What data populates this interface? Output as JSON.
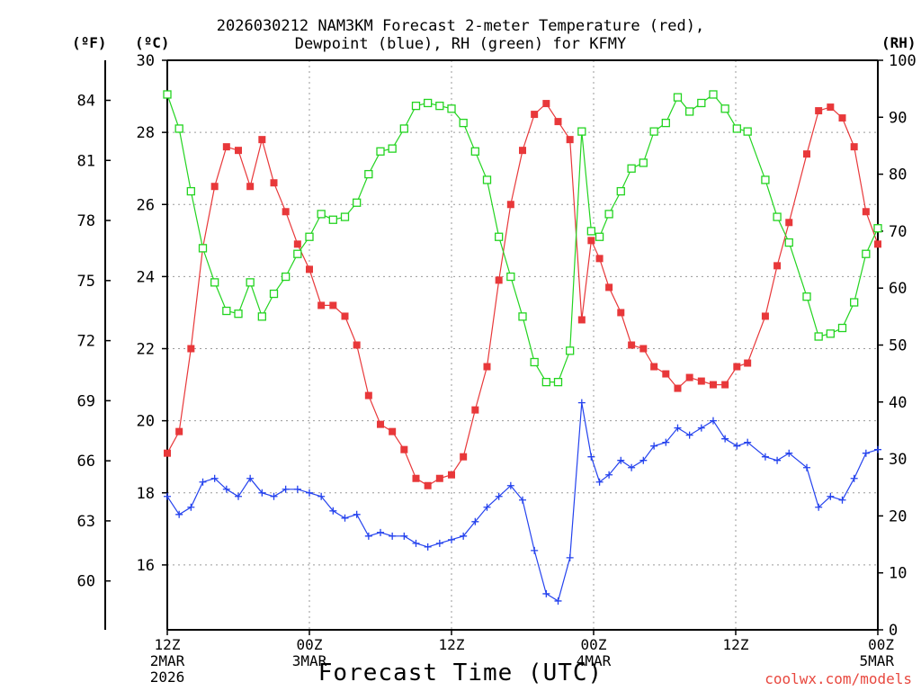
{
  "chart_data": {
    "type": "line",
    "title_line1": "2026030212 NAM3KM Forecast 2-meter Temperature (red),",
    "title_line2": "Dewpoint (blue), RH (green) for KFMY",
    "xlabel": "Forecast Time (UTC)",
    "credit": "coolwx.com/models",
    "units": {
      "f": "(ºF)",
      "c": "(ºC)",
      "rh": "(RH)"
    },
    "x_range_hours": [
      0,
      60
    ],
    "ylim_c": [
      14.2,
      30
    ],
    "ylim_rh": [
      0,
      100
    ],
    "c_ticks": [
      "16",
      "18",
      "20",
      "22",
      "24",
      "26",
      "28",
      "30"
    ],
    "f_ticks": [
      "60",
      "63",
      "66",
      "69",
      "72",
      "75",
      "78",
      "81",
      "84"
    ],
    "rh_ticks": [
      "0",
      "10",
      "20",
      "30",
      "40",
      "50",
      "60",
      "70",
      "80",
      "90",
      "100"
    ],
    "x_ticks": [
      {
        "hour": 0,
        "lines": [
          "12Z",
          "2MAR",
          "2026"
        ]
      },
      {
        "hour": 12,
        "lines": [
          "00Z",
          "3MAR"
        ]
      },
      {
        "hour": 24,
        "lines": [
          "12Z"
        ]
      },
      {
        "hour": 36,
        "lines": [
          "00Z",
          "4MAR"
        ]
      },
      {
        "hour": 48,
        "lines": [
          "12Z"
        ]
      },
      {
        "hour": 60,
        "lines": [
          "00Z",
          "5MAR"
        ]
      }
    ],
    "series": [
      {
        "name": "2-meter Temperature",
        "unit": "C",
        "color": "#e8383a",
        "marker": "filled-square",
        "values": [
          19.1,
          19.7,
          22.0,
          24.8,
          26.5,
          27.6,
          27.5,
          26.5,
          27.8,
          26.6,
          25.8,
          24.9,
          24.2,
          23.2,
          23.2,
          22.9,
          22.1,
          20.7,
          19.9,
          19.7,
          19.2,
          18.4,
          18.2,
          18.4,
          18.5,
          19.0,
          20.3,
          21.5,
          23.9,
          26.0,
          27.5,
          28.5,
          28.8,
          28.3,
          27.8,
          22.8,
          25.0,
          24.5,
          23.7,
          23.0,
          22.1,
          22.0,
          21.5,
          21.3,
          20.9,
          21.2,
          21.1,
          21.0,
          21.0,
          21.5,
          21.6,
          22.9,
          24.3,
          25.5,
          27.4,
          28.6,
          28.7,
          28.4,
          27.6,
          25.8,
          24.9
        ],
        "hour_positions": [
          0,
          1,
          2,
          3,
          4,
          5,
          6,
          7,
          8,
          9,
          10,
          11,
          12,
          13,
          14,
          15,
          16,
          17,
          18,
          19,
          20,
          21,
          22,
          23,
          24,
          25,
          26,
          27,
          28,
          29,
          30,
          31,
          32,
          33,
          34,
          35,
          35.8,
          36.5,
          37.3,
          38.3,
          39.2,
          40.2,
          41.1,
          42.1,
          43.1,
          44.1,
          45.1,
          46.1,
          47.1,
          48.1,
          49,
          50.5,
          51.5,
          52.5,
          54,
          55,
          56,
          57,
          58,
          59,
          60
        ]
      },
      {
        "name": "Dewpoint",
        "unit": "C",
        "color": "#2442ee",
        "marker": "plus",
        "values": [
          17.9,
          17.4,
          17.6,
          18.3,
          18.4,
          18.1,
          17.9,
          18.4,
          18.0,
          17.9,
          18.1,
          18.1,
          18.0,
          17.9,
          17.5,
          17.3,
          17.4,
          16.8,
          16.9,
          16.8,
          16.8,
          16.6,
          16.5,
          16.6,
          16.7,
          16.8,
          17.2,
          17.6,
          17.9,
          18.2,
          17.8,
          16.4,
          15.2,
          15.0,
          16.2,
          20.5,
          19.0,
          18.3,
          18.5,
          18.9,
          18.7,
          18.9,
          19.3,
          19.4,
          19.8,
          19.6,
          19.8,
          20.0,
          19.5,
          19.3,
          19.4,
          19.0,
          18.9,
          19.1,
          18.7,
          17.6,
          17.9,
          17.8,
          18.4,
          19.1,
          19.2
        ],
        "hour_positions": [
          0,
          1,
          2,
          3,
          4,
          5,
          6,
          7,
          8,
          9,
          10,
          11,
          12,
          13,
          14,
          15,
          16,
          17,
          18,
          19,
          20,
          21,
          22,
          23,
          24,
          25,
          26,
          27,
          28,
          29,
          30,
          31,
          32,
          33,
          34,
          35,
          35.8,
          36.5,
          37.3,
          38.3,
          39.2,
          40.2,
          41.1,
          42.1,
          43.1,
          44.1,
          45.1,
          46.1,
          47.1,
          48.1,
          49,
          50.5,
          51.5,
          52.5,
          54,
          55,
          56,
          57,
          58,
          59,
          60
        ]
      },
      {
        "name": "RH",
        "unit": "%",
        "color": "#23d420",
        "marker": "open-square",
        "values": [
          94,
          88,
          77,
          67,
          61,
          56,
          55.5,
          61,
          55,
          59,
          62,
          66,
          69,
          73,
          72,
          72.5,
          75,
          80,
          84,
          84.5,
          88,
          92,
          92.5,
          92,
          91.5,
          89,
          84,
          79,
          69,
          62,
          55,
          47,
          43.5,
          43.5,
          49,
          87.5,
          70,
          69,
          73,
          77,
          81,
          82,
          87.5,
          89,
          93.5,
          91,
          92.5,
          94,
          91.5,
          88,
          87.5,
          79,
          72.5,
          68,
          58.5,
          51.5,
          52,
          53,
          57.5,
          66,
          70.5
        ],
        "hour_positions": [
          0,
          1,
          2,
          3,
          4,
          5,
          6,
          7,
          8,
          9,
          10,
          11,
          12,
          13,
          14,
          15,
          16,
          17,
          18,
          19,
          20,
          21,
          22,
          23,
          24,
          25,
          26,
          27,
          28,
          29,
          30,
          31,
          32,
          33,
          34,
          35,
          35.8,
          36.5,
          37.3,
          38.3,
          39.2,
          40.2,
          41.1,
          42.1,
          43.1,
          44.1,
          45.1,
          46.1,
          47.1,
          48.1,
          49,
          50.5,
          51.5,
          52.5,
          54,
          55,
          56,
          57,
          58,
          59,
          60
        ]
      }
    ]
  }
}
